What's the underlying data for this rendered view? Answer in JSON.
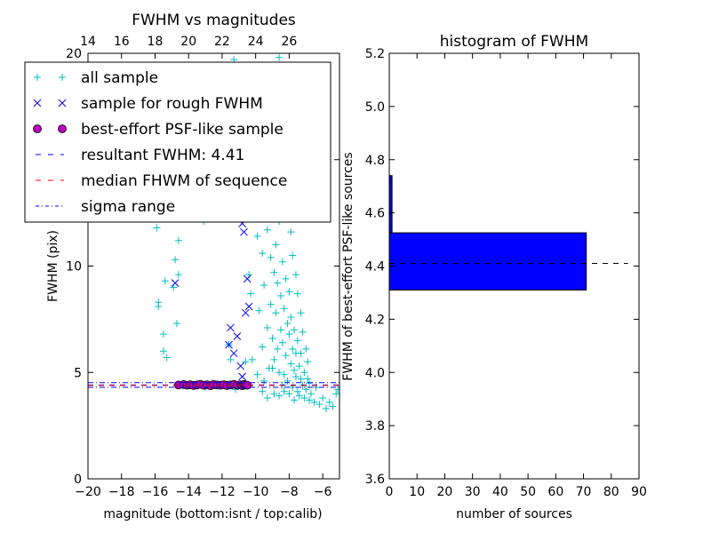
{
  "chart_data": [
    {
      "type": "scatter",
      "title": "FWHM vs magnitudes",
      "xlabel": "magnitude (bottom:isnt / top:calib)",
      "ylabel": "FWHM (pix)",
      "xlim": [
        -20,
        -5
      ],
      "ylim": [
        0,
        20
      ],
      "x_ticks": [
        -20,
        -18,
        -16,
        -14,
        -12,
        -10,
        -8,
        -6
      ],
      "x_tick_labels": [
        "−20",
        "−18",
        "−16",
        "−14",
        "−12",
        "−10",
        "−8",
        "−6"
      ],
      "y_ticks": [
        0,
        5,
        10,
        15,
        20
      ],
      "y_tick_labels": [
        "0",
        "5",
        "10",
        "15",
        "20"
      ],
      "top_axis": {
        "offset": 34,
        "ticks": [
          14,
          16,
          18,
          20,
          22,
          24,
          26
        ],
        "tick_labels": [
          "14",
          "16",
          "18",
          "20",
          "22",
          "24",
          "26"
        ]
      },
      "legend_position": "upper-left",
      "legend": [
        {
          "label": "all sample",
          "marker": "plus",
          "color": "#00bfbf"
        },
        {
          "label": "sample for rough FWHM",
          "marker": "x",
          "color": "#0000ff"
        },
        {
          "label": "best-effort PSF-like sample",
          "marker": "circle",
          "color": "#bf00bf"
        },
        {
          "label": "resultant FWHM: 4.41",
          "marker": "dash",
          "color": "#0000ff"
        },
        {
          "label": "median FHWM of sequence",
          "marker": "dash",
          "color": "#ff0000"
        },
        {
          "label": "sigma range",
          "marker": "dashdot",
          "color": "#0000ff"
        }
      ],
      "series": [
        {
          "name": "all sample",
          "marker": "plus",
          "color": "#00bfbf",
          "points": [
            [
              -15.9,
              11.8
            ],
            [
              -15.8,
              8.3
            ],
            [
              -15.8,
              8.1
            ],
            [
              -15.5,
              6.8
            ],
            [
              -15.5,
              6.0
            ],
            [
              -15.4,
              9.3
            ],
            [
              -15.3,
              5.7
            ],
            [
              -14.9,
              9.0
            ],
            [
              -14.8,
              10.3
            ],
            [
              -14.6,
              9.6
            ],
            [
              -14.6,
              11.2
            ],
            [
              -14.7,
              7.3
            ],
            [
              -14.3,
              12.4
            ],
            [
              -14.4,
              13.6
            ],
            [
              -13.1,
              12.1
            ],
            [
              -12.2,
              15.3
            ],
            [
              -12.0,
              14.5
            ],
            [
              -11.3,
              19.7
            ],
            [
              -10.9,
              17.8
            ],
            [
              -10.8,
              16.6
            ],
            [
              -10.5,
              12.4
            ],
            [
              -10.4,
              9.6
            ],
            [
              -10.3,
              8.7
            ],
            [
              -10.1,
              12.2
            ],
            [
              -10.0,
              15.3
            ],
            [
              -9.9,
              11.4
            ],
            [
              -9.8,
              7.9
            ],
            [
              -9.7,
              13.2
            ],
            [
              -9.6,
              10.6
            ],
            [
              -9.6,
              6.2
            ],
            [
              -9.5,
              9.1
            ],
            [
              -9.4,
              12.6
            ],
            [
              -9.3,
              11.7
            ],
            [
              -9.3,
              7.1
            ],
            [
              -9.2,
              5.2
            ],
            [
              -9.1,
              10.4
            ],
            [
              -9.1,
              8.2
            ],
            [
              -9.0,
              6.6
            ],
            [
              -9.0,
              13.6
            ],
            [
              -8.9,
              9.7
            ],
            [
              -8.9,
              5.6
            ],
            [
              -8.8,
              11.0
            ],
            [
              -8.8,
              7.8
            ],
            [
              -8.7,
              6.1
            ],
            [
              -8.7,
              9.2
            ],
            [
              -8.6,
              12.1
            ],
            [
              -8.6,
              5.0
            ],
            [
              -8.5,
              8.6
            ],
            [
              -8.5,
              7.0
            ],
            [
              -8.4,
              10.2
            ],
            [
              -8.4,
              6.4
            ],
            [
              -8.3,
              4.9
            ],
            [
              -8.3,
              8.0
            ],
            [
              -8.2,
              9.4
            ],
            [
              -8.2,
              5.8
            ],
            [
              -8.1,
              7.3
            ],
            [
              -8.1,
              4.6
            ],
            [
              -8.0,
              6.8
            ],
            [
              -8.0,
              8.8
            ],
            [
              -7.9,
              5.4
            ],
            [
              -7.9,
              7.6
            ],
            [
              -7.8,
              4.3
            ],
            [
              -7.8,
              6.1
            ],
            [
              -7.7,
              5.1
            ],
            [
              -7.7,
              7.0
            ],
            [
              -7.6,
              4.8
            ],
            [
              -7.6,
              5.9
            ],
            [
              -7.5,
              4.1
            ],
            [
              -7.5,
              6.5
            ],
            [
              -7.4,
              5.3
            ],
            [
              -7.4,
              3.9
            ],
            [
              -7.3,
              4.7
            ],
            [
              -7.3,
              5.9
            ],
            [
              -7.2,
              4.4
            ],
            [
              -7.1,
              3.8
            ],
            [
              -7.1,
              5.0
            ],
            [
              -7.0,
              4.2
            ],
            [
              -6.9,
              4.7
            ],
            [
              -6.8,
              3.7
            ],
            [
              -6.8,
              4.5
            ],
            [
              -6.7,
              4.0
            ],
            [
              -6.5,
              3.6
            ],
            [
              -6.4,
              4.3
            ],
            [
              -6.2,
              3.5
            ],
            [
              -6.0,
              3.8
            ],
            [
              -5.8,
              3.3
            ],
            [
              -5.6,
              3.6
            ],
            [
              -5.4,
              3.4
            ],
            [
              -5.2,
              4.0
            ],
            [
              -5.1,
              4.2
            ],
            [
              -9.9,
              4.9
            ],
            [
              -9.6,
              4.1
            ],
            [
              -9.3,
              3.8
            ],
            [
              -8.9,
              4.0
            ],
            [
              -8.6,
              3.9
            ],
            [
              -8.3,
              4.1
            ],
            [
              -8.0,
              4.0
            ],
            [
              -7.7,
              3.7
            ],
            [
              -10.2,
              5.6
            ],
            [
              -9.5,
              4.6
            ],
            [
              -9.0,
              5.2
            ],
            [
              -8.4,
              4.4
            ],
            [
              -12.6,
              4.5
            ],
            [
              -11.6,
              6.3
            ],
            [
              -11.5,
              5.6
            ],
            [
              -10.6,
              5.5
            ],
            [
              -11.2,
              4.2
            ],
            [
              -13.0,
              4.3
            ],
            [
              -9.7,
              14.6
            ],
            [
              -9.2,
              15.8
            ],
            [
              -8.9,
              16.7
            ],
            [
              -9.4,
              17.2
            ],
            [
              -8.5,
              18.5
            ],
            [
              -8.6,
              19.8
            ],
            [
              -8.3,
              13.4
            ],
            [
              -8.1,
              12.7
            ],
            [
              -7.9,
              11.6
            ],
            [
              -7.8,
              10.5
            ],
            [
              -7.6,
              9.6
            ],
            [
              -7.5,
              8.7
            ],
            [
              -7.3,
              7.8
            ],
            [
              -7.2,
              6.9
            ],
            [
              -7.0,
              6.1
            ],
            [
              -6.9,
              5.5
            ]
          ]
        },
        {
          "name": "sample for rough FWHM",
          "marker": "x",
          "color": "#0000ff",
          "points": [
            [
              -14.8,
              9.2
            ],
            [
              -12.1,
              14.7
            ],
            [
              -11.8,
              15.2
            ],
            [
              -11.5,
              14.2
            ],
            [
              -11.3,
              13.2
            ],
            [
              -11.1,
              15.8
            ],
            [
              -10.9,
              14.0
            ],
            [
              -10.9,
              17.2
            ],
            [
              -10.8,
              12.0
            ],
            [
              -10.7,
              11.6
            ],
            [
              -10.5,
              9.4
            ],
            [
              -10.4,
              8.1
            ],
            [
              -10.6,
              7.8
            ],
            [
              -10.8,
              4.8
            ],
            [
              -10.9,
              5.3
            ],
            [
              -11.1,
              6.7
            ],
            [
              -11.3,
              5.9
            ],
            [
              -11.6,
              6.3
            ],
            [
              -11.5,
              7.1
            ],
            [
              -10.7,
              4.4
            ]
          ]
        },
        {
          "name": "best-effort PSF-like sample",
          "marker": "circle",
          "color": "#bf00bf",
          "points": [
            [
              -14.6,
              4.41
            ],
            [
              -14.3,
              4.43
            ],
            [
              -14.1,
              4.4
            ],
            [
              -13.9,
              4.42
            ],
            [
              -13.7,
              4.39
            ],
            [
              -13.5,
              4.41
            ],
            [
              -13.3,
              4.44
            ],
            [
              -13.1,
              4.4
            ],
            [
              -12.9,
              4.42
            ],
            [
              -12.7,
              4.38
            ],
            [
              -12.5,
              4.43
            ],
            [
              -12.3,
              4.41
            ],
            [
              -12.1,
              4.4
            ],
            [
              -11.9,
              4.42
            ],
            [
              -11.7,
              4.39
            ],
            [
              -11.5,
              4.41
            ],
            [
              -11.3,
              4.44
            ],
            [
              -11.1,
              4.4
            ],
            [
              -10.9,
              4.42
            ],
            [
              -10.8,
              4.38
            ],
            [
              -10.7,
              4.43
            ],
            [
              -10.6,
              4.41
            ],
            [
              -10.5,
              4.4
            ]
          ]
        }
      ],
      "hlines": [
        {
          "name": "resultant FWHM: 4.41",
          "y": 4.41,
          "color": "#0000ff",
          "style": "dashed"
        },
        {
          "name": "median FHWM of sequence",
          "y": 4.39,
          "color": "#ff0000",
          "style": "dashed"
        },
        {
          "name": "sigma range",
          "y": 4.52,
          "color": "#0000ff",
          "style": "dashdot"
        },
        {
          "name": "sigma range",
          "y": 4.3,
          "color": "#0000ff",
          "style": "dashdot"
        }
      ]
    },
    {
      "type": "bar",
      "orientation": "horizontal",
      "title": "histogram of FWHM",
      "xlabel": "number of sources",
      "ylabel": "FWHM of best-effort PSF-like sources",
      "xlim": [
        0,
        90
      ],
      "ylim": [
        3.6,
        5.2
      ],
      "x_ticks": [
        0,
        10,
        20,
        30,
        40,
        50,
        60,
        70,
        80,
        90
      ],
      "x_tick_labels": [
        "0",
        "10",
        "20",
        "30",
        "40",
        "50",
        "60",
        "70",
        "80",
        "90"
      ],
      "y_ticks": [
        3.6,
        3.8,
        4.0,
        4.2,
        4.4,
        4.6,
        4.8,
        5.0,
        5.2
      ],
      "y_tick_labels": [
        "3.6",
        "3.8",
        "4.0",
        "4.2",
        "4.4",
        "4.6",
        "4.8",
        "5.0",
        "5.2"
      ],
      "bars": [
        {
          "y0": 4.31,
          "y1": 4.525,
          "value": 71
        },
        {
          "y0": 4.525,
          "y1": 4.74,
          "value": 1
        }
      ],
      "bar_color": "#0000ff",
      "hline": {
        "y": 4.41,
        "xmax": 86,
        "color": "#000000",
        "style": "dashed"
      }
    }
  ]
}
